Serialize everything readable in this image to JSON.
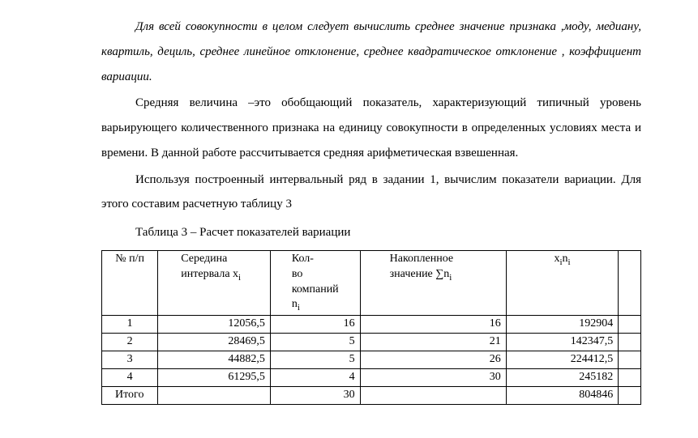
{
  "paragraphs": {
    "p1": "Для всей совокупности  в целом  следует вычислить среднее значение признака ,моду, медиану, квартиль, дециль, среднее линейное отклонение, среднее квадратическое отклонение , коэффициент вариации.",
    "p2": "Средняя величина –это обобщающий показатель, характеризующий типичный уровень варьирующего количественного признака на единицу совокупности в определенных условиях места и времени. В данной работе рассчитывается средняя  арифметическая взвешенная.",
    "p3": "Используя построенный интервальный ряд в задании 1, вычислим показатели вариации.  Для этого составим расчетную таблицу 3",
    "caption": "Таблица 3 – Расчет показателей вариации"
  },
  "table": {
    "headers": {
      "num": "№ п/п",
      "mid_l1": "Середина",
      "mid_l2": "интервала  x",
      "cnt_l1": "Кол-",
      "cnt_l2": "во",
      "cnt_l3": "компаний",
      "cnt_l4": "n",
      "acc_l1": "Накопленное",
      "acc_l2": "значение ∑n",
      "xini": "x",
      "xini2": "n",
      "sub_i": "i"
    },
    "rows": [
      {
        "num": "1",
        "mid": "12056,5",
        "cnt": "16",
        "acc": "16",
        "xini": "192904"
      },
      {
        "num": "2",
        "mid": "28469,5",
        "cnt": "5",
        "acc": "21",
        "xini": "142347,5"
      },
      {
        "num": "3",
        "mid": "44882,5",
        "cnt": "5",
        "acc": "26",
        "xini": "224412,5"
      },
      {
        "num": "4",
        "mid": "61295,5",
        "cnt": "4",
        "acc": "30",
        "xini": "245182"
      }
    ],
    "total": {
      "label": "Итого",
      "cnt": "30",
      "xini": "804846"
    }
  }
}
